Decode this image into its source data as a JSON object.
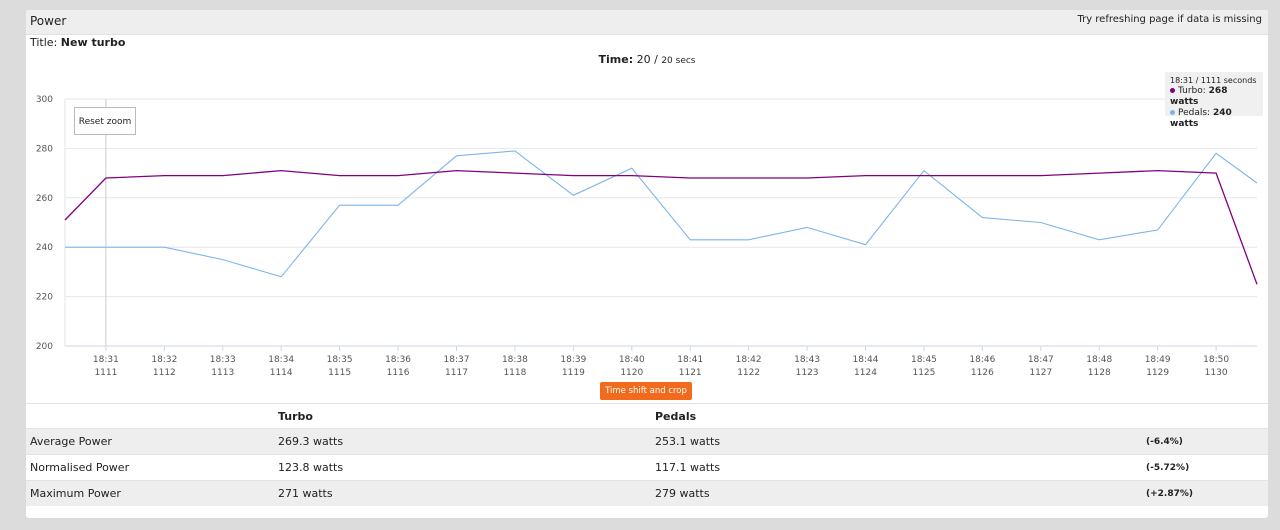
{
  "header": {
    "title": "Power",
    "note": "Try refreshing page if data is missing"
  },
  "title_label": "Title:",
  "title_value": "New turbo",
  "time": {
    "label": "Time:",
    "value": "20 /",
    "unit": "20 secs"
  },
  "reset_zoom_label": "Reset zoom",
  "time_shift_label": "Time shift and crop",
  "tooltip": {
    "header": "18:31 / 1111 seconds",
    "turbo_label": "Turbo:",
    "turbo_value": "268 watts",
    "pedals_label": "Pedals:",
    "pedals_value": "240 watts"
  },
  "colors": {
    "turbo": "#800080",
    "pedals": "#7cb5ec",
    "accent": "#f26b1d"
  },
  "stats": {
    "headers": [
      "",
      "Turbo",
      "Pedals",
      ""
    ],
    "rows": [
      {
        "label": "Average Power",
        "turbo": "269.3 watts",
        "pedals": "253.1 watts",
        "diff": "(-6.4%)"
      },
      {
        "label": "Normalised Power",
        "turbo": "123.8 watts",
        "pedals": "117.1 watts",
        "diff": "(-5.72%)"
      },
      {
        "label": "Maximum Power",
        "turbo": "271 watts",
        "pedals": "279 watts",
        "diff": "(+2.87%)"
      }
    ]
  },
  "chart_data": {
    "type": "line",
    "ylim": [
      200,
      300
    ],
    "yticks": [
      200,
      220,
      240,
      260,
      280,
      300
    ],
    "grid": true,
    "x": [
      1110.3,
      1111,
      1112,
      1113,
      1114,
      1115,
      1116,
      1117,
      1118,
      1119,
      1120,
      1121,
      1122,
      1123,
      1124,
      1125,
      1126,
      1127,
      1128,
      1129,
      1130,
      1130.7
    ],
    "tick_x": [
      1111,
      1112,
      1113,
      1114,
      1115,
      1116,
      1117,
      1118,
      1119,
      1120,
      1121,
      1122,
      1123,
      1124,
      1125,
      1126,
      1127,
      1128,
      1129,
      1130
    ],
    "tick_labels": [
      [
        "18:31",
        "1111"
      ],
      [
        "18:32",
        "1112"
      ],
      [
        "18:33",
        "1113"
      ],
      [
        "18:34",
        "1114"
      ],
      [
        "18:35",
        "1115"
      ],
      [
        "18:36",
        "1116"
      ],
      [
        "18:37",
        "1117"
      ],
      [
        "18:38",
        "1118"
      ],
      [
        "18:39",
        "1119"
      ],
      [
        "18:40",
        "1120"
      ],
      [
        "18:41",
        "1121"
      ],
      [
        "18:42",
        "1122"
      ],
      [
        "18:43",
        "1123"
      ],
      [
        "18:44",
        "1124"
      ],
      [
        "18:45",
        "1125"
      ],
      [
        "18:46",
        "1126"
      ],
      [
        "18:47",
        "1127"
      ],
      [
        "18:48",
        "1128"
      ],
      [
        "18:49",
        "1129"
      ],
      [
        "18:50",
        "1130"
      ]
    ],
    "series": [
      {
        "name": "Turbo",
        "values": [
          251,
          268,
          269,
          269,
          271,
          269,
          269,
          271,
          270,
          269,
          269,
          268,
          268,
          268,
          269,
          269,
          269,
          269,
          270,
          271,
          270,
          225
        ]
      },
      {
        "name": "Pedals",
        "values": [
          240,
          240,
          240,
          235,
          228,
          257,
          257,
          277,
          279,
          261,
          272,
          243,
          243,
          248,
          241,
          271,
          252,
          250,
          243,
          247,
          278,
          266
        ]
      }
    ],
    "crosshair_x": 1111
  }
}
